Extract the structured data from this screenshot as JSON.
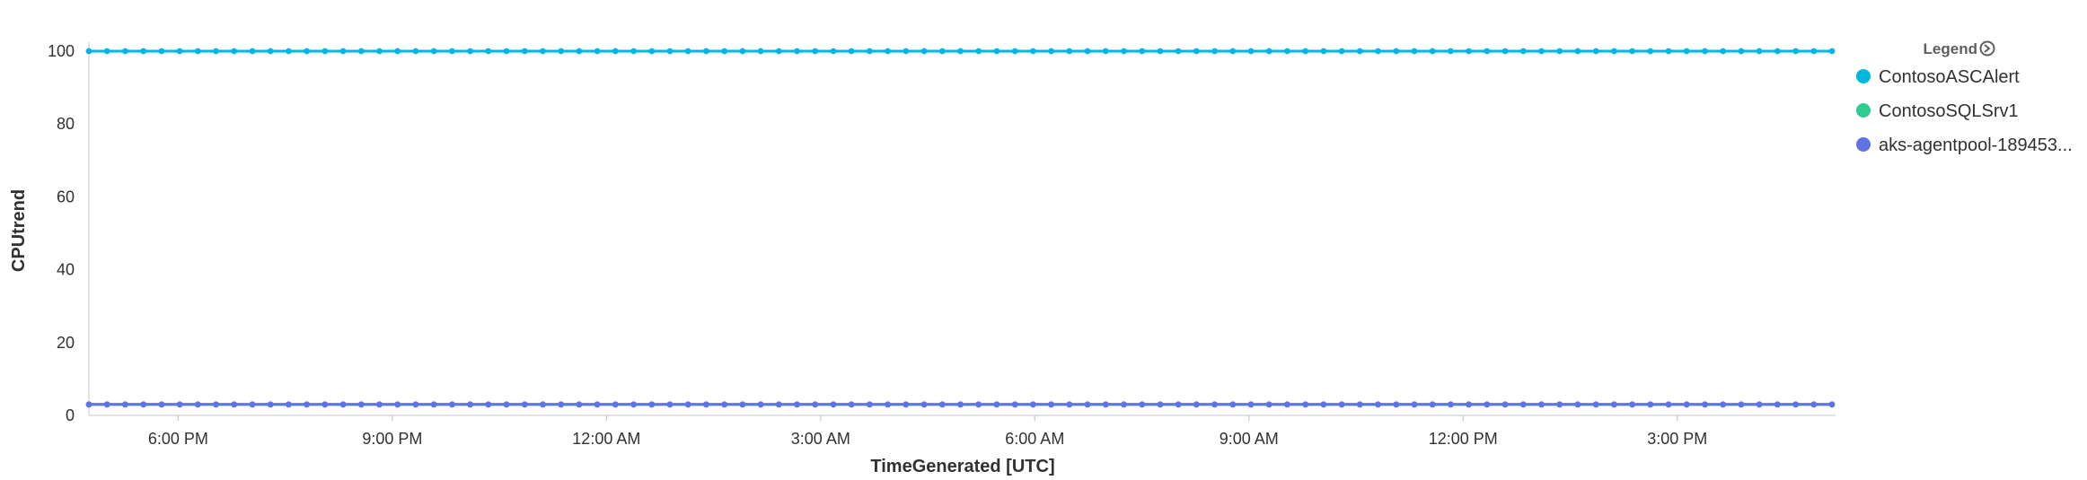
{
  "chart_data": {
    "type": "line",
    "title": "",
    "xlabel": "TimeGenerated [UTC]",
    "ylabel": "CPUtrend",
    "x_tick_labels": [
      "6:00 PM",
      "9:00 PM",
      "12:00 AM",
      "3:00 AM",
      "6:00 AM",
      "9:00 AM",
      "12:00 PM",
      "3:00 PM"
    ],
    "y_ticks": [
      0,
      20,
      40,
      60,
      80,
      100
    ],
    "ylim": [
      0,
      100
    ],
    "x_start_hour": 16.75,
    "x_end_hour": 41.167,
    "point_count": 97,
    "grid": false,
    "legend_position": "right",
    "legend_title": "Legend",
    "series": [
      {
        "name": "ContosoASCAlert",
        "color": "#00b7e0",
        "constant_value": 100
      },
      {
        "name": "ContosoSQLSrv1",
        "color": "#2ecc8f",
        "constant_value": 3
      },
      {
        "name": "aks-agentpool-189453...",
        "color": "#6271e8",
        "constant_value": 3
      }
    ]
  }
}
